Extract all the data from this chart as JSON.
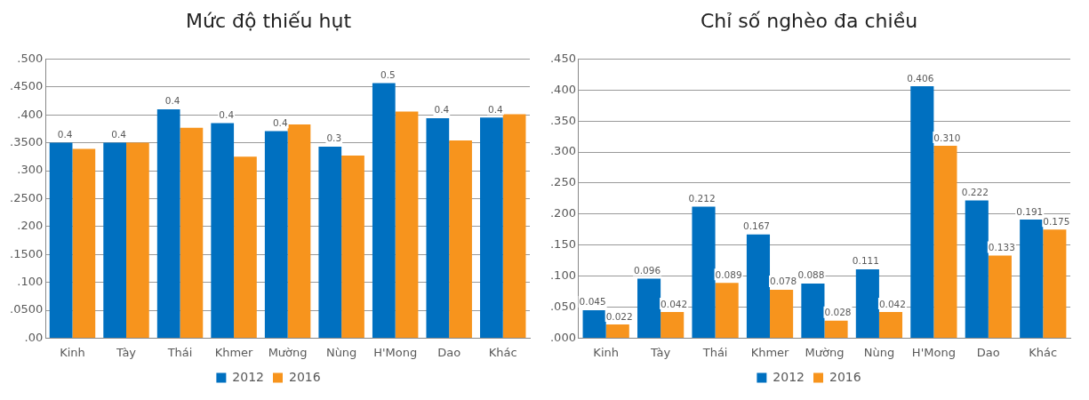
{
  "chart_data": [
    {
      "type": "bar",
      "title": "Mức độ thiếu hụt",
      "categories": [
        "Kinh",
        "Tày",
        "Thái",
        "Khmer",
        "Mường",
        "Nùng",
        "H'Mong",
        "Dao",
        "Khác"
      ],
      "series": [
        {
          "name": "2012",
          "color": "#0070c0",
          "values": [
            0.35,
            0.35,
            0.41,
            0.385,
            0.371,
            0.343,
            0.457,
            0.394,
            0.395
          ],
          "value_labels": [
            "0.4",
            "0.4",
            "0.4",
            "0.4",
            "0.4",
            "0.3",
            "0.5",
            "0.4",
            "0.4"
          ]
        },
        {
          "name": "2016",
          "color": "#f7941d",
          "values": [
            0.339,
            0.35,
            0.377,
            0.325,
            0.383,
            0.327,
            0.406,
            0.354,
            0.401
          ]
        }
      ],
      "ylim": [
        0,
        0.5
      ],
      "yticks": [
        {
          "value": 0,
          "label": ".00"
        },
        {
          "value": 0.05,
          "label": ".0500"
        },
        {
          "value": 0.1,
          "label": ".100"
        },
        {
          "value": 0.15,
          "label": ".1500"
        },
        {
          "value": 0.2,
          "label": ".200"
        },
        {
          "value": 0.25,
          "label": ".2500"
        },
        {
          "value": 0.3,
          "label": ".300"
        },
        {
          "value": 0.35,
          "label": ".3500"
        },
        {
          "value": 0.4,
          "label": ".400"
        },
        {
          "value": 0.45,
          "label": ".4500"
        },
        {
          "value": 0.5,
          "label": ".500"
        }
      ],
      "grid": "y",
      "legend": "bottom"
    },
    {
      "type": "bar",
      "title": "Chỉ số nghèo đa chiều",
      "categories": [
        "Kinh",
        "Tày",
        "Thái",
        "Khmer",
        "Mường",
        "Nùng",
        "H'Mong",
        "Dao",
        "Khác"
      ],
      "series": [
        {
          "name": "2012",
          "color": "#0070c0",
          "values": [
            0.045,
            0.096,
            0.212,
            0.167,
            0.088,
            0.111,
            0.406,
            0.222,
            0.191
          ],
          "value_labels": [
            "0.045",
            "0.096",
            "0.212",
            "0.167",
            "0.088",
            "0.111",
            "0.406",
            "0.222",
            "0.191"
          ]
        },
        {
          "name": "2016",
          "color": "#f7941d",
          "values": [
            0.022,
            0.042,
            0.089,
            0.078,
            0.028,
            0.042,
            0.31,
            0.133,
            0.175
          ],
          "value_labels": [
            "0.022",
            "0.042",
            "0.089",
            "0.078",
            "0.028",
            "0.042",
            "0.310",
            "0.133",
            "0.175"
          ]
        }
      ],
      "ylim": [
        0,
        0.45
      ],
      "yticks": [
        {
          "value": 0,
          "label": ".000"
        },
        {
          "value": 0.05,
          "label": ".050"
        },
        {
          "value": 0.1,
          "label": ".100"
        },
        {
          "value": 0.15,
          "label": ".150"
        },
        {
          "value": 0.2,
          "label": ".200"
        },
        {
          "value": 0.25,
          "label": ".250"
        },
        {
          "value": 0.3,
          "label": ".300"
        },
        {
          "value": 0.35,
          "label": ".350"
        },
        {
          "value": 0.4,
          "label": ".400"
        },
        {
          "value": 0.45,
          "label": ".450"
        }
      ],
      "grid": "y",
      "legend": "bottom"
    }
  ]
}
